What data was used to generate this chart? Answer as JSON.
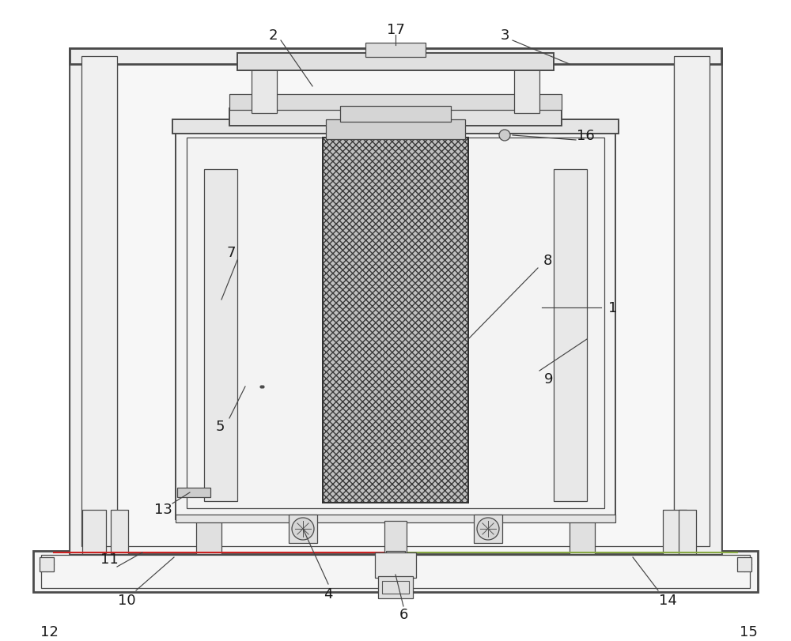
{
  "bg_color": "#ffffff",
  "lc": "#4a4a4a",
  "lw_thick": 2.0,
  "lw_med": 1.4,
  "lw_thin": 0.9,
  "label_fontsize": 13,
  "label_color": "#1a1a1a"
}
